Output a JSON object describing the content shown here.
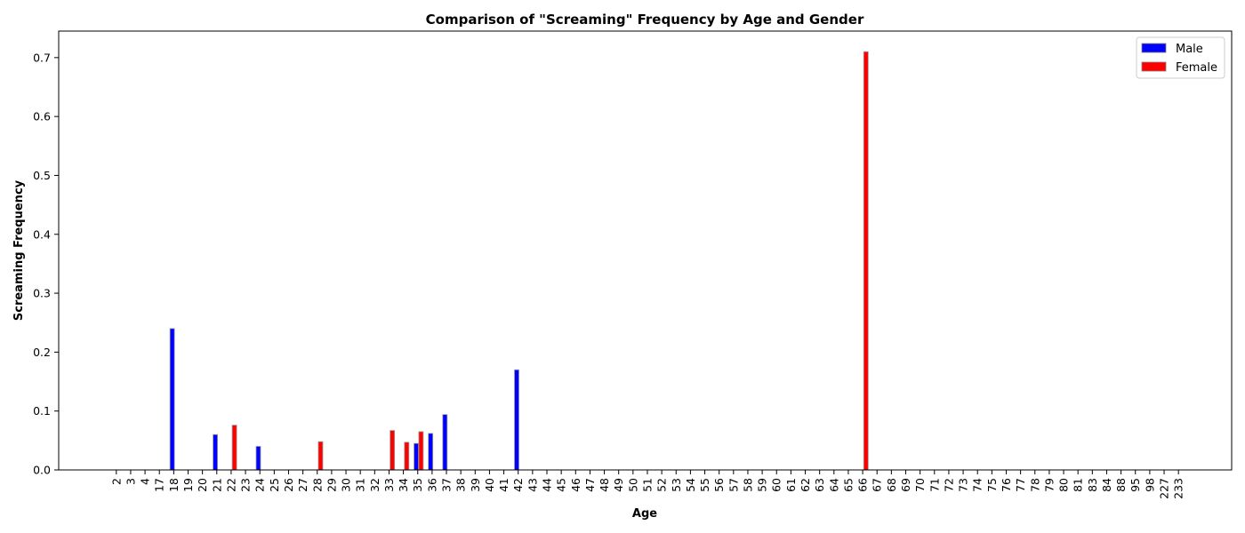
{
  "chart_data": {
    "type": "bar",
    "title": "Comparison of \"Screaming\" Frequency by Age and Gender",
    "xlabel": "Age",
    "ylabel": "Screaming Frequency",
    "ylim": [
      0,
      0.745
    ],
    "yticks": [
      0.0,
      0.1,
      0.2,
      0.3,
      0.4,
      0.5,
      0.6,
      0.7
    ],
    "grid": false,
    "legend_position": "top-right",
    "categories": [
      "2",
      "3",
      "4",
      "17",
      "18",
      "19",
      "20",
      "21",
      "22",
      "23",
      "24",
      "25",
      "26",
      "27",
      "28",
      "29",
      "30",
      "31",
      "32",
      "33",
      "34",
      "35",
      "36",
      "37",
      "38",
      "39",
      "40",
      "41",
      "42",
      "43",
      "44",
      "45",
      "46",
      "47",
      "48",
      "49",
      "50",
      "51",
      "52",
      "53",
      "54",
      "55",
      "56",
      "57",
      "58",
      "59",
      "60",
      "61",
      "62",
      "63",
      "64",
      "65",
      "66",
      "67",
      "68",
      "69",
      "70",
      "71",
      "72",
      "73",
      "74",
      "75",
      "76",
      "77",
      "78",
      "79",
      "80",
      "81",
      "83",
      "84",
      "88",
      "95",
      "98",
      "227",
      "233"
    ],
    "series": [
      {
        "name": "Male",
        "color": "#0000ff",
        "values": [
          0,
          0,
          0,
          0,
          0.24,
          0,
          0,
          0.06,
          0,
          0,
          0.04,
          0,
          0,
          0,
          0,
          0,
          0,
          0,
          0,
          0,
          0,
          0.045,
          0.062,
          0.094,
          0,
          0,
          0,
          0,
          0.17,
          0,
          0,
          0,
          0,
          0,
          0,
          0,
          0,
          0,
          0,
          0,
          0,
          0,
          0,
          0,
          0,
          0,
          0,
          0,
          0,
          0,
          0,
          0,
          0,
          0,
          0,
          0,
          0,
          0,
          0,
          0,
          0,
          0,
          0,
          0,
          0,
          0,
          0,
          0,
          0,
          0,
          0,
          0,
          0,
          0,
          0
        ]
      },
      {
        "name": "Female",
        "color": "#ff0000",
        "values": [
          0,
          0,
          0,
          0,
          0,
          0,
          0,
          0,
          0.076,
          0,
          0,
          0,
          0,
          0,
          0.048,
          0,
          0,
          0,
          0,
          0.067,
          0.047,
          0.065,
          0,
          0,
          0,
          0,
          0,
          0,
          0,
          0,
          0,
          0,
          0,
          0,
          0,
          0,
          0,
          0,
          0,
          0,
          0,
          0,
          0,
          0,
          0,
          0,
          0,
          0,
          0,
          0,
          0,
          0,
          0.71,
          0,
          0,
          0,
          0,
          0,
          0,
          0,
          0,
          0,
          0,
          0,
          0,
          0,
          0,
          0,
          0,
          0,
          0,
          0,
          0,
          0,
          0
        ]
      }
    ]
  }
}
